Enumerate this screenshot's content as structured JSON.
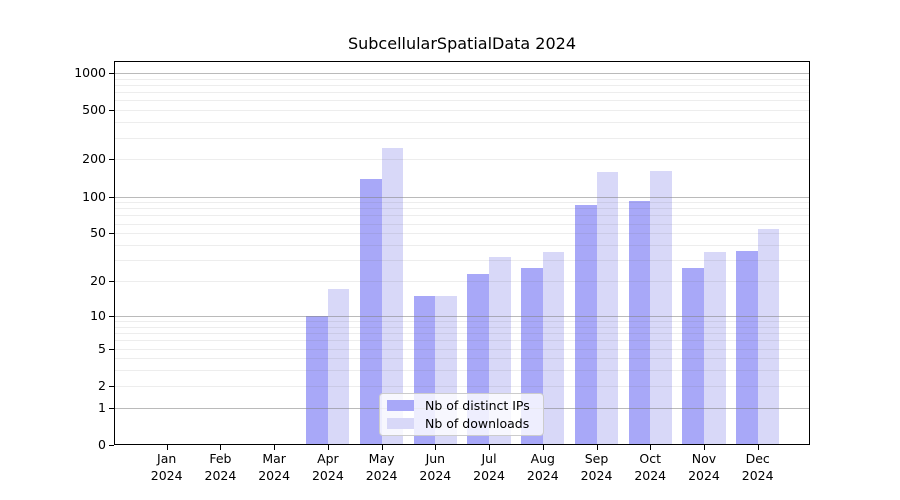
{
  "title": "SubcellularSpatialData 2024",
  "chart_data": {
    "type": "bar",
    "title": "SubcellularSpatialData 2024",
    "categories": [
      "Jan 2024",
      "Feb 2024",
      "Mar 2024",
      "Apr 2024",
      "May 2024",
      "Jun 2024",
      "Jul 2024",
      "Aug 2024",
      "Sep 2024",
      "Oct 2024",
      "Nov 2024",
      "Dec 2024"
    ],
    "series": [
      {
        "name": "Nb of distinct IPs",
        "color": "#a8a8f8",
        "values": [
          0,
          0,
          0,
          10,
          140,
          15,
          23,
          26,
          86,
          92,
          26,
          36
        ]
      },
      {
        "name": "Nb of downloads",
        "color": "#d8d8f8",
        "values": [
          0,
          0,
          0,
          17,
          248,
          15,
          32,
          35,
          157,
          160,
          35,
          54
        ]
      }
    ],
    "yscale": "log1p",
    "y_ticks": [
      0,
      1,
      2,
      5,
      10,
      20,
      50,
      100,
      200,
      500,
      1000
    ],
    "ylim": [
      0,
      1250
    ],
    "grid": true,
    "legend_position": "lower center",
    "colors": {
      "bar_dark": "#a8a8f8",
      "bar_light": "#d8d8f8",
      "grid_major": "#b0b0b0",
      "grid_minor": "#e8e8e8",
      "spine": "#000000"
    }
  }
}
